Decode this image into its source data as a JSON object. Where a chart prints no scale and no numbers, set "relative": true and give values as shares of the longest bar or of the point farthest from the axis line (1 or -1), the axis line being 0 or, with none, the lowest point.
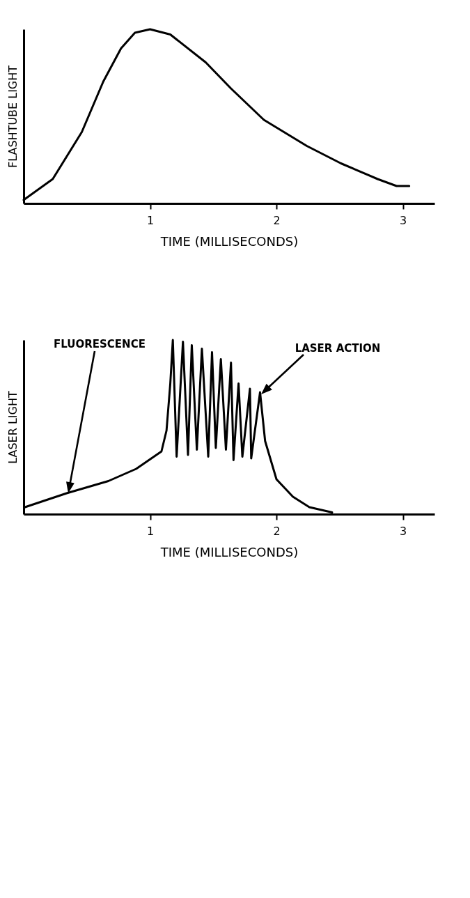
{
  "chart_data": [
    {
      "type": "line",
      "relative": true,
      "ylabel": "FLASHTUBE LIGHT",
      "xlabel": "TIME (MILLISECONDS)",
      "xlim": [
        0,
        3.25
      ],
      "xticks": [
        1,
        2,
        3
      ],
      "tick_labels": "x",
      "line_style": "solid",
      "series": [
        {
          "color": "#000000",
          "x": [
            0,
            0.23,
            0.46,
            0.63,
            0.77,
            0.88,
            1.0,
            1.16,
            1.44,
            1.64,
            1.9,
            2.24,
            2.51,
            2.8,
            2.95,
            3.05
          ],
          "values": [
            0.02,
            0.14,
            0.41,
            0.7,
            0.89,
            0.98,
            1,
            0.97,
            0.81,
            0.66,
            0.48,
            0.33,
            0.23,
            0.14,
            0.1,
            0.1
          ]
        }
      ]
    },
    {
      "type": "line",
      "relative": true,
      "ylabel": "LASER LIGHT",
      "xlabel": "TIME (MILLISECONDS)",
      "xlim": [
        0,
        3.25
      ],
      "xticks": [
        1,
        2,
        3
      ],
      "tick_labels": "x",
      "line_style": "solid",
      "annotations": [
        "FLUORESCENCE",
        "LASER ACTION"
      ],
      "series": [
        {
          "color": "#000000",
          "x": [
            0.01,
            0.34,
            0.67,
            0.89,
            1.09,
            1.13,
            1.16,
            1.18,
            1.21,
            1.26,
            1.3,
            1.33,
            1.37,
            1.41,
            1.46,
            1.49,
            1.52,
            1.56,
            1.6,
            1.64,
            1.66,
            1.7,
            1.73,
            1.79,
            1.8,
            1.87,
            1.91,
            2.0,
            2.13,
            2.26,
            2.44
          ],
          "values": [
            0.04,
            0.12,
            0.19,
            0.26,
            0.36,
            0.48,
            0.75,
            1,
            0.33,
            0.99,
            0.34,
            0.97,
            0.37,
            0.95,
            0.33,
            0.93,
            0.38,
            0.89,
            0.37,
            0.87,
            0.31,
            0.75,
            0.33,
            0.72,
            0.32,
            0.7,
            0.42,
            0.2,
            0.1,
            0.04,
            0.01
          ]
        }
      ]
    }
  ]
}
